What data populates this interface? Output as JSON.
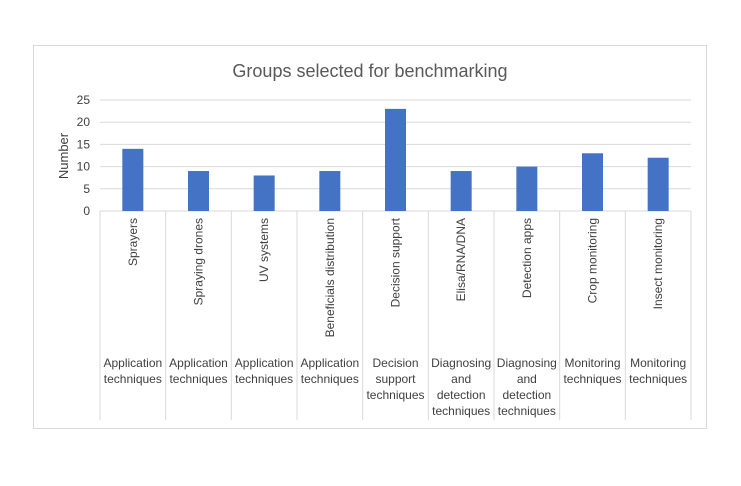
{
  "chart_data": {
    "type": "bar",
    "title": "Groups selected for benchmarking",
    "ylabel": "Number",
    "xlabel": "",
    "ylim": [
      0,
      25
    ],
    "yticks": [
      0,
      5,
      10,
      15,
      20,
      25
    ],
    "grid": true,
    "color": "#4472c4",
    "categories": [
      "Sprayers",
      "Spraying drones",
      "UV systems",
      "Beneficials distribution",
      "Decision support",
      "Elisa/RNA/DNA",
      "Detection apps",
      "Crop monitoring",
      "Insect monitoring"
    ],
    "groups": [
      [
        "Application",
        "techniques"
      ],
      [
        "Application",
        "techniques"
      ],
      [
        "Application",
        "techniques"
      ],
      [
        "Application",
        "techniques"
      ],
      [
        "Decision",
        "support",
        "techniques"
      ],
      [
        "Diagnosing",
        "and",
        "detection",
        "techniques"
      ],
      [
        "Diagnosing",
        "and",
        "detection",
        "techniques"
      ],
      [
        "Monitoring",
        "techniques"
      ],
      [
        "Monitoring",
        "techniques"
      ]
    ],
    "values": [
      14,
      9,
      8,
      9,
      23,
      9,
      10,
      13,
      12
    ]
  }
}
